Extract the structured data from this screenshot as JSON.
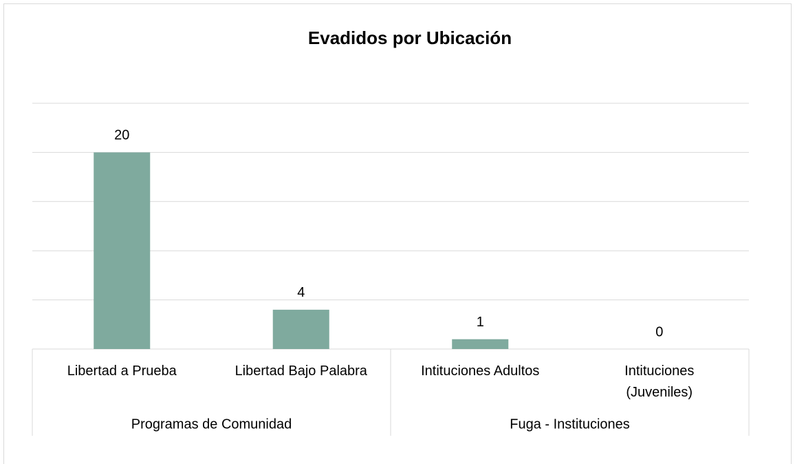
{
  "chart_data": {
    "type": "bar",
    "title": "Evadidos por Ubicación",
    "groups": [
      {
        "name": "Programas de Comunidad",
        "span": 2
      },
      {
        "name": "Fuga - Instituciones",
        "span": 2
      }
    ],
    "categories": [
      "Libertad a Prueba",
      "Libertad Bajo Palabra",
      "Intituciones Adultos",
      "Intituciones\n(Juveniles)"
    ],
    "values": [
      20,
      4,
      1,
      0
    ],
    "color": "#7faa9e",
    "ylim": [
      0,
      25
    ],
    "yticks": [
      0,
      5,
      10,
      15,
      20,
      25
    ],
    "grid": true
  }
}
